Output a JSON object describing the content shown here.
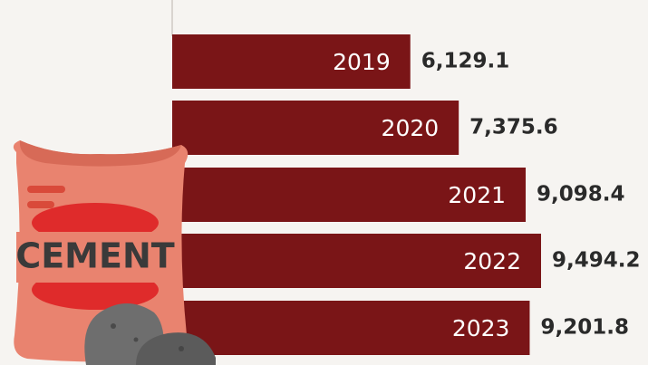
{
  "chart_data": {
    "type": "bar",
    "orientation": "horizontal",
    "categories": [
      "2019",
      "2020",
      "2021",
      "2022",
      "2023"
    ],
    "values": [
      6129.1,
      7375.6,
      9098.4,
      9494.2,
      9201.8
    ],
    "value_labels": [
      "6,129.1",
      "7,375.6",
      "9,098.4",
      "9,494.2",
      "9,201.8"
    ],
    "color": "#7a1517",
    "icon_label": "CEMENT"
  }
}
